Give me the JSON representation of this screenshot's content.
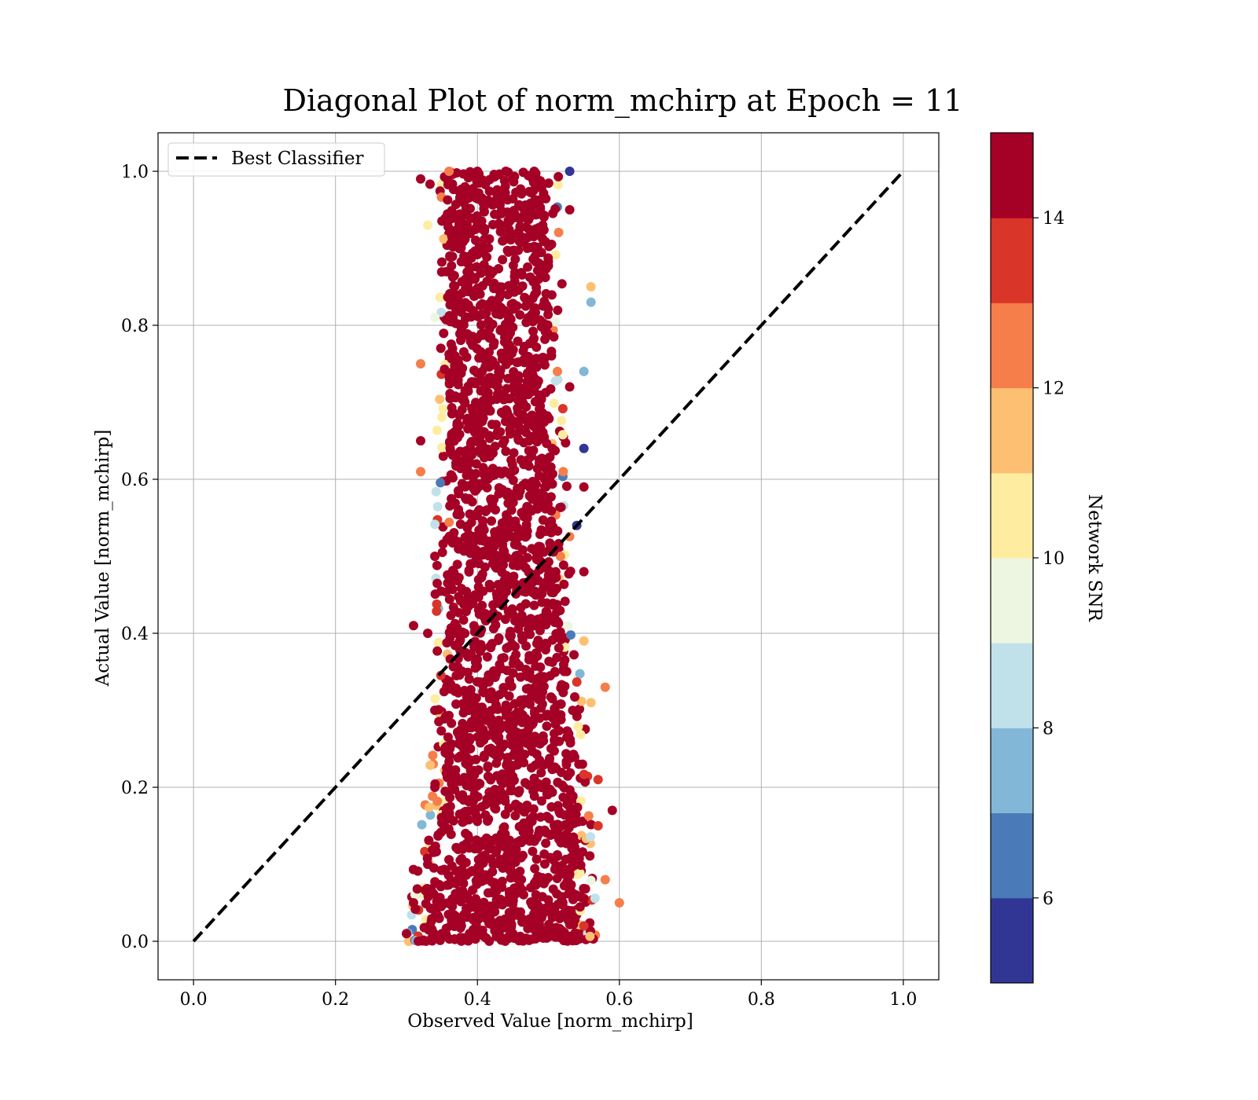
{
  "chart_data": {
    "type": "scatter",
    "title": "Diagonal Plot of norm_mchirp at Epoch = 11",
    "xlabel": "Observed Value [norm_mchirp]",
    "ylabel": "Actual Value [norm_mchirp]",
    "xlim": [
      -0.05,
      1.05
    ],
    "ylim": [
      -0.05,
      1.05
    ],
    "xticks": [
      "0.0",
      "0.2",
      "0.4",
      "0.6",
      "0.8",
      "1.0"
    ],
    "yticks": [
      "0.0",
      "0.2",
      "0.4",
      "0.6",
      "0.8",
      "1.0"
    ],
    "grid": true,
    "legend": {
      "placement": "upper-left",
      "entries": [
        {
          "label": "Best Classifier",
          "style": "dashed",
          "color": "#000000"
        }
      ]
    },
    "reference_line": {
      "name": "Best Classifier",
      "x": [
        0.0,
        1.0
      ],
      "y": [
        0.0,
        1.0
      ]
    },
    "scatter_summary": {
      "color_variable": "Network SNR",
      "points": [
        {
          "x": 0.3,
          "y": 0.01,
          "c": 15
        },
        {
          "x": 0.35,
          "y": 0.01,
          "c": 15
        },
        {
          "x": 0.4,
          "y": 0.01,
          "c": 15
        },
        {
          "x": 0.45,
          "y": 0.01,
          "c": 15
        },
        {
          "x": 0.5,
          "y": 0.01,
          "c": 15
        },
        {
          "x": 0.55,
          "y": 0.02,
          "c": 14
        },
        {
          "x": 0.6,
          "y": 0.05,
          "c": 13
        },
        {
          "x": 0.31,
          "y": 0.05,
          "c": 15
        },
        {
          "x": 0.58,
          "y": 0.08,
          "c": 13
        },
        {
          "x": 0.33,
          "y": 0.1,
          "c": 15
        },
        {
          "x": 0.57,
          "y": 0.15,
          "c": 14
        },
        {
          "x": 0.59,
          "y": 0.17,
          "c": 15
        },
        {
          "x": 0.34,
          "y": 0.2,
          "c": 15
        },
        {
          "x": 0.57,
          "y": 0.21,
          "c": 14
        },
        {
          "x": 0.34,
          "y": 0.3,
          "c": 15
        },
        {
          "x": 0.58,
          "y": 0.33,
          "c": 13
        },
        {
          "x": 0.56,
          "y": 0.31,
          "c": 12
        },
        {
          "x": 0.31,
          "y": 0.41,
          "c": 15
        },
        {
          "x": 0.33,
          "y": 0.4,
          "c": 15
        },
        {
          "x": 0.55,
          "y": 0.39,
          "c": 12
        },
        {
          "x": 0.55,
          "y": 0.48,
          "c": 15
        },
        {
          "x": 0.34,
          "y": 0.5,
          "c": 15
        },
        {
          "x": 0.54,
          "y": 0.54,
          "c": 6
        },
        {
          "x": 0.32,
          "y": 0.61,
          "c": 13
        },
        {
          "x": 0.55,
          "y": 0.59,
          "c": 15
        },
        {
          "x": 0.55,
          "y": 0.64,
          "c": 5
        },
        {
          "x": 0.32,
          "y": 0.65,
          "c": 15
        },
        {
          "x": 0.53,
          "y": 0.72,
          "c": 15
        },
        {
          "x": 0.32,
          "y": 0.75,
          "c": 13
        },
        {
          "x": 0.55,
          "y": 0.74,
          "c": 8
        },
        {
          "x": 0.34,
          "y": 0.81,
          "c": 10
        },
        {
          "x": 0.56,
          "y": 0.85,
          "c": 12
        },
        {
          "x": 0.56,
          "y": 0.83,
          "c": 8
        },
        {
          "x": 0.33,
          "y": 0.93,
          "c": 11
        },
        {
          "x": 0.53,
          "y": 0.95,
          "c": 15
        },
        {
          "x": 0.53,
          "y": 1.0,
          "c": 6
        },
        {
          "x": 0.32,
          "y": 0.99,
          "c": 15
        },
        {
          "x": 0.36,
          "y": 1.0,
          "c": 13
        },
        {
          "x": 0.4,
          "y": 1.0,
          "c": 15
        },
        {
          "x": 0.44,
          "y": 1.0,
          "c": 15
        },
        {
          "x": 0.48,
          "y": 1.0,
          "c": 15
        }
      ],
      "dense_band": {
        "description": "Dense cluster of points, mostly SNR ≥ 14",
        "rows": [
          {
            "y": 0.0,
            "x_min": 0.3,
            "x_max": 0.57
          },
          {
            "y": 0.1,
            "x_min": 0.31,
            "x_max": 0.57
          },
          {
            "y": 0.2,
            "x_min": 0.33,
            "x_max": 0.56
          },
          {
            "y": 0.3,
            "x_min": 0.34,
            "x_max": 0.55
          },
          {
            "y": 0.4,
            "x_min": 0.34,
            "x_max": 0.54
          },
          {
            "y": 0.5,
            "x_min": 0.34,
            "x_max": 0.53
          },
          {
            "y": 0.6,
            "x_min": 0.34,
            "x_max": 0.53
          },
          {
            "y": 0.7,
            "x_min": 0.34,
            "x_max": 0.52
          },
          {
            "y": 0.8,
            "x_min": 0.34,
            "x_max": 0.52
          },
          {
            "y": 0.9,
            "x_min": 0.34,
            "x_max": 0.52
          },
          {
            "y": 1.0,
            "x_min": 0.33,
            "x_max": 0.52
          }
        ]
      }
    },
    "colorbar": {
      "label": "Network SNR",
      "min": 5,
      "max": 15,
      "ticks": [
        "6",
        "8",
        "10",
        "12",
        "14"
      ],
      "bins": [
        {
          "from": 5,
          "to": 6,
          "color": "#313695"
        },
        {
          "from": 6,
          "to": 7,
          "color": "#4a7ab7"
        },
        {
          "from": 7,
          "to": 8,
          "color": "#82b7d7"
        },
        {
          "from": 8,
          "to": 9,
          "color": "#c0e1ea"
        },
        {
          "from": 9,
          "to": 10,
          "color": "#edf6e0"
        },
        {
          "from": 10,
          "to": 11,
          "color": "#feeda1"
        },
        {
          "from": 11,
          "to": 12,
          "color": "#fdbf71"
        },
        {
          "from": 12,
          "to": 13,
          "color": "#f57e4b"
        },
        {
          "from": 13,
          "to": 14,
          "color": "#d93529"
        },
        {
          "from": 14,
          "to": 15,
          "color": "#a50026"
        }
      ]
    }
  }
}
